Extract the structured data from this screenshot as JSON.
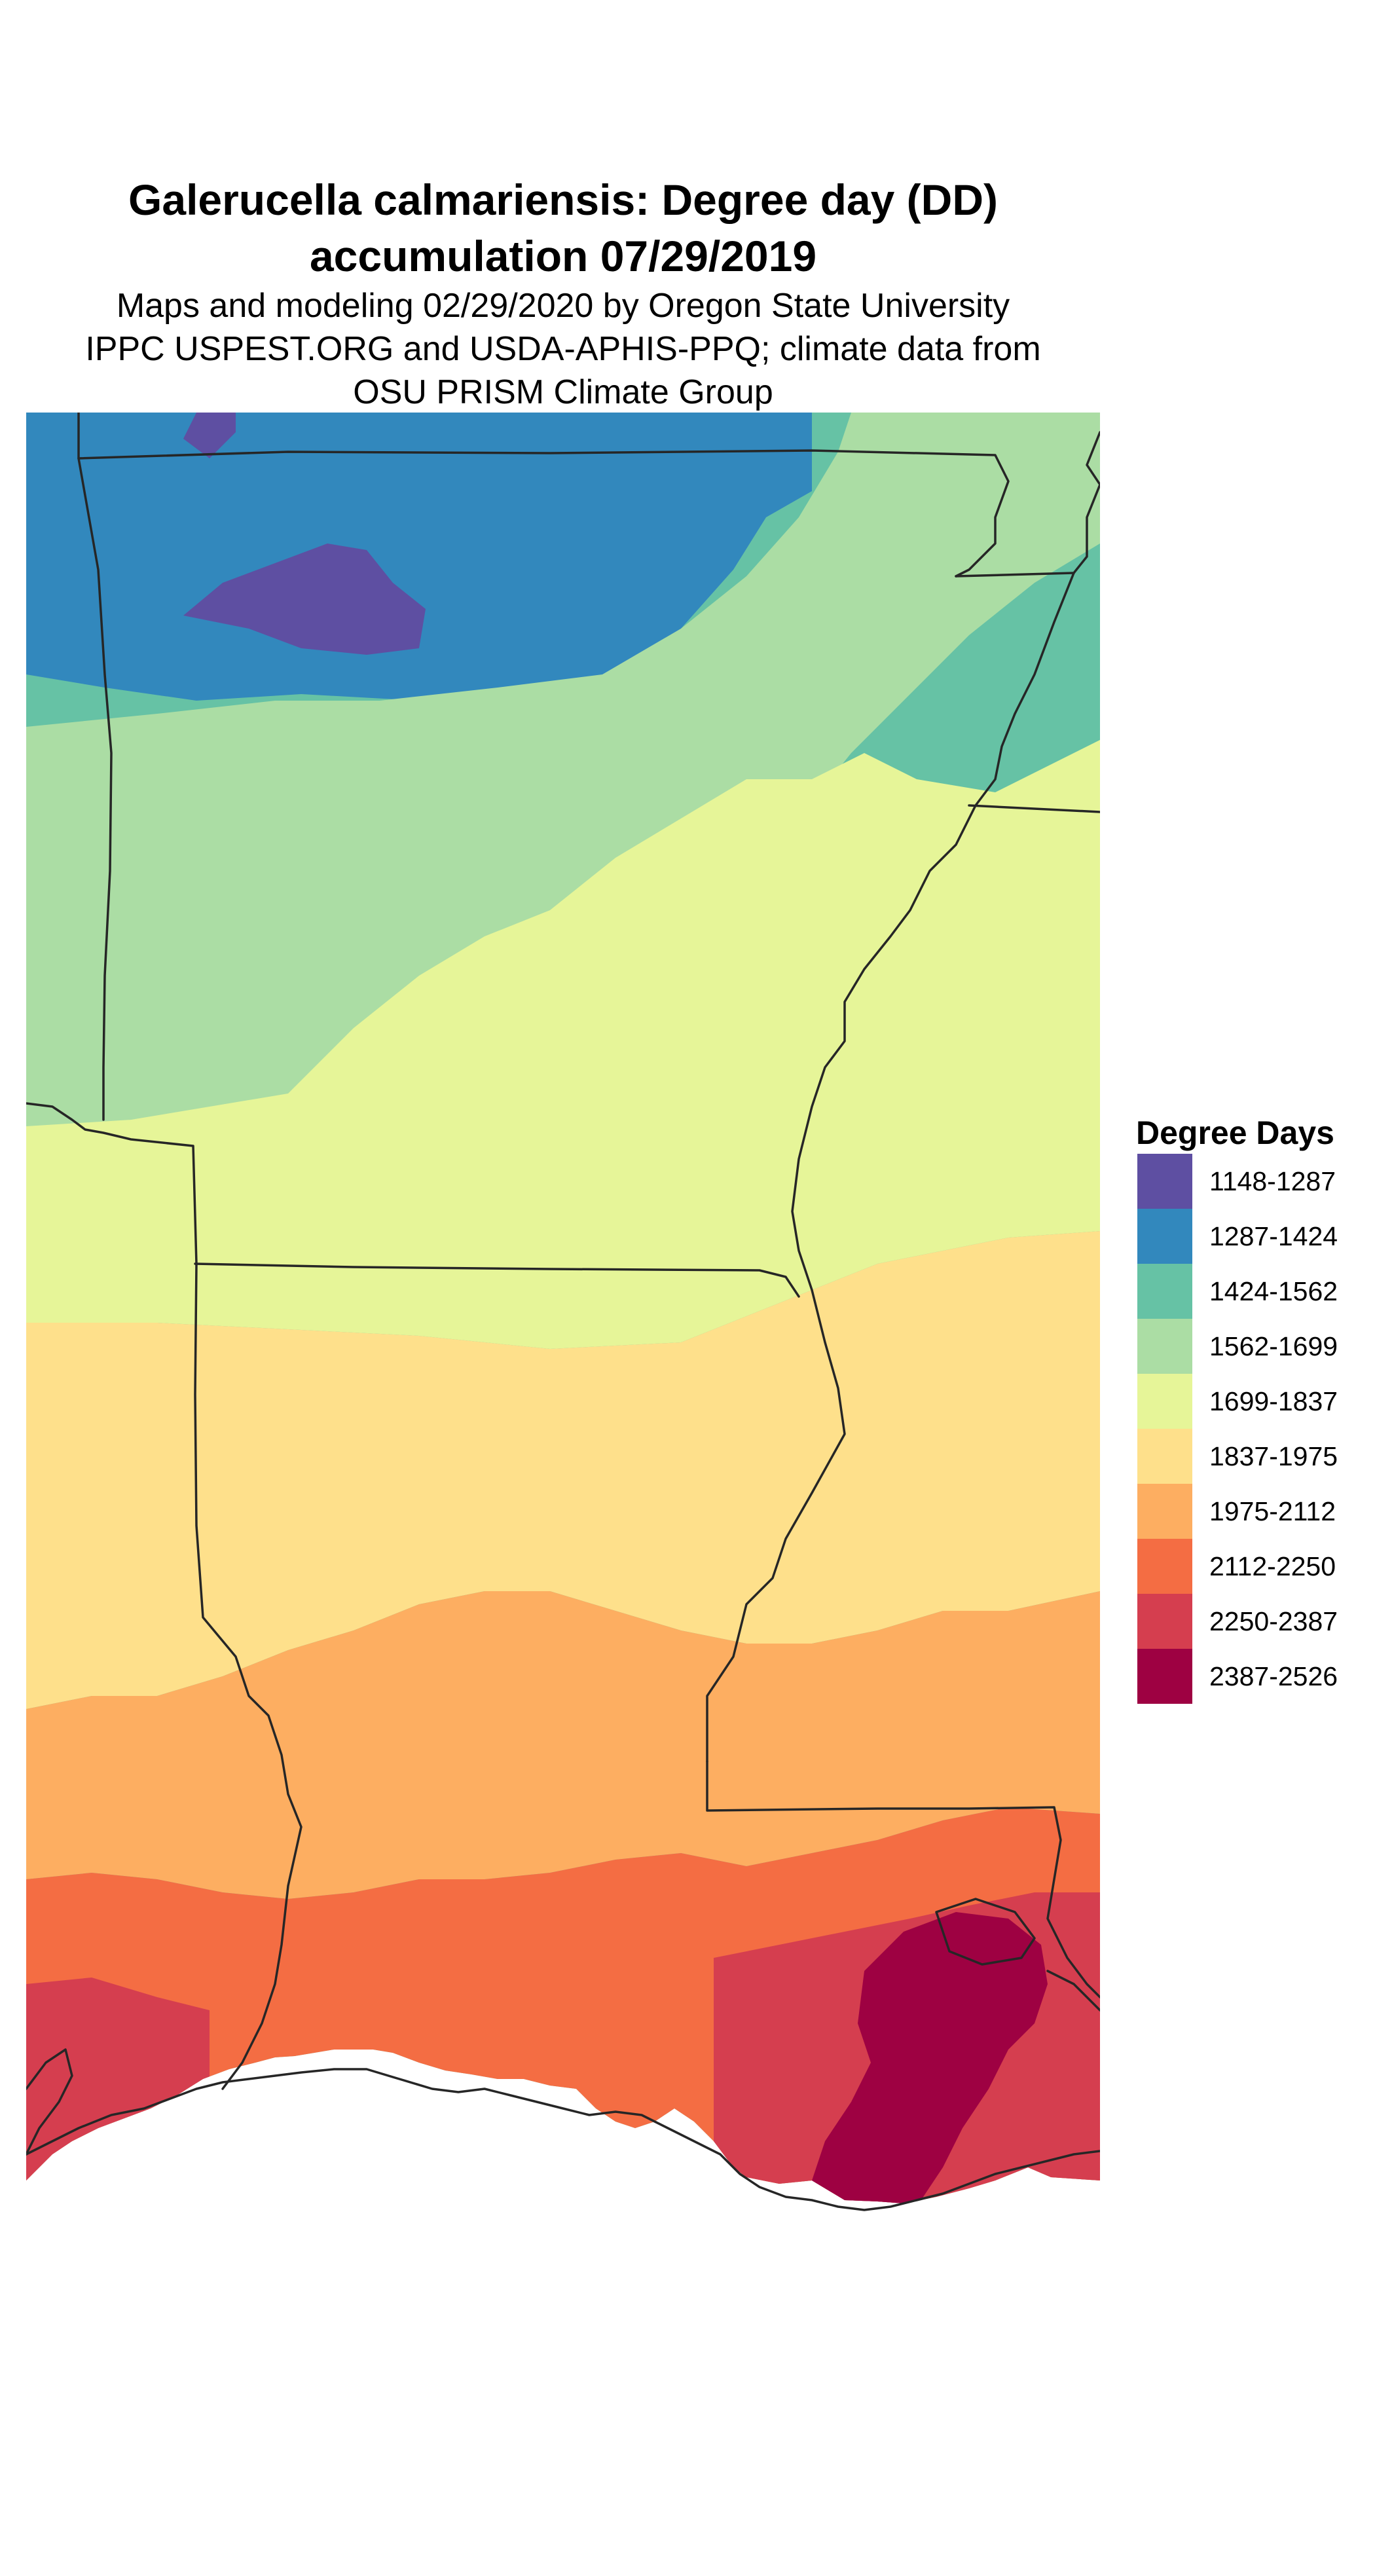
{
  "title": {
    "line1": "Galerucella calmariensis: Degree day (DD)",
    "line2": "accumulation 07/29/2019"
  },
  "subtitle": {
    "line1": "Maps and modeling 02/29/2020 by Oregon State University",
    "line2": "IPPC USPEST.ORG and USDA-APHIS-PPQ; climate data from",
    "line3": "OSU PRISM Climate Group"
  },
  "legend": {
    "title": "Degree Days",
    "items": [
      {
        "label": "1148-1287",
        "color": "#5E4FA2"
      },
      {
        "label": "1287-1424",
        "color": "#3288BD"
      },
      {
        "label": "1424-1562",
        "color": "#66C2A5"
      },
      {
        "label": "1562-1699",
        "color": "#ABDDA4"
      },
      {
        "label": "1699-1837",
        "color": "#E6F598"
      },
      {
        "label": "1837-1975",
        "color": "#FEE08B"
      },
      {
        "label": "1975-2112",
        "color": "#FDAE61"
      },
      {
        "label": "2112-2250",
        "color": "#F46D43"
      },
      {
        "label": "2250-2387",
        "color": "#D53E4F"
      },
      {
        "label": "2387-2526",
        "color": "#9E0142"
      }
    ]
  },
  "colors": {
    "background": "#ffffff",
    "boundary": "#262626"
  }
}
